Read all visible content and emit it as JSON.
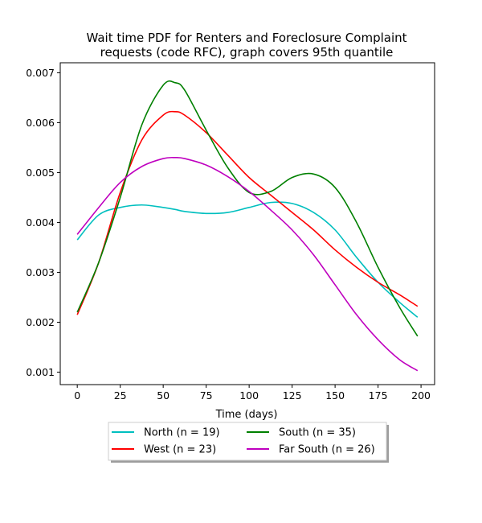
{
  "chart_data": {
    "type": "line",
    "title": "Wait time PDF for Renters and Foreclosure Complaint",
    "subtitle": "requests (code RFC), graph covers 95th quantile",
    "xlabel": "Time (days)",
    "ylabel": "",
    "xlim": [
      -9.9,
      207.9
    ],
    "ylim": [
      0.00075,
      0.0072
    ],
    "xticks": [
      0,
      25,
      50,
      75,
      100,
      125,
      150,
      175,
      200
    ],
    "xtick_labels": [
      "0",
      "25",
      "50",
      "75",
      "100",
      "125",
      "150",
      "175",
      "200"
    ],
    "yticks": [
      0.001,
      0.002,
      0.003,
      0.004,
      0.005,
      0.006,
      0.007
    ],
    "ytick_labels": [
      "0.001",
      "0.002",
      "0.003",
      "0.004",
      "0.005",
      "0.006",
      "0.007"
    ],
    "grid": false,
    "legend_position": "below-center",
    "x": [
      0,
      12.5,
      25,
      37.5,
      50,
      57,
      62.5,
      75,
      87.5,
      100,
      112.5,
      125,
      137.5,
      150,
      162.5,
      175,
      187.5,
      198
    ],
    "series": [
      {
        "name": "North (n = 19)",
        "color": "#00bfbf",
        "values": [
          0.00365,
          0.00415,
          0.0043,
          0.00435,
          0.0043,
          0.00426,
          0.00422,
          0.00418,
          0.0042,
          0.0043,
          0.0044,
          0.00438,
          0.0042,
          0.00385,
          0.0033,
          0.0028,
          0.0024,
          0.0021
        ]
      },
      {
        "name": "West (n = 23)",
        "color": "#ff0000",
        "values": [
          0.00215,
          0.0032,
          0.0046,
          0.00565,
          0.00615,
          0.00622,
          0.00615,
          0.0058,
          0.00535,
          0.0049,
          0.00455,
          0.0042,
          0.00385,
          0.00345,
          0.0031,
          0.0028,
          0.00255,
          0.00232
        ]
      },
      {
        "name": "South (n = 35)",
        "color": "#008000",
        "values": [
          0.0022,
          0.0032,
          0.0045,
          0.00595,
          0.00675,
          0.0068,
          0.00665,
          0.00585,
          0.0051,
          0.0046,
          0.00462,
          0.0049,
          0.00497,
          0.0047,
          0.004,
          0.0031,
          0.0023,
          0.00172
        ]
      },
      {
        "name": "Far South (n = 26)",
        "color": "#bf00bf",
        "values": [
          0.00376,
          0.0043,
          0.0048,
          0.00512,
          0.00528,
          0.0053,
          0.00528,
          0.00515,
          0.00492,
          0.00462,
          0.00425,
          0.00385,
          0.00335,
          0.00275,
          0.00215,
          0.00165,
          0.00125,
          0.00103
        ]
      }
    ]
  }
}
